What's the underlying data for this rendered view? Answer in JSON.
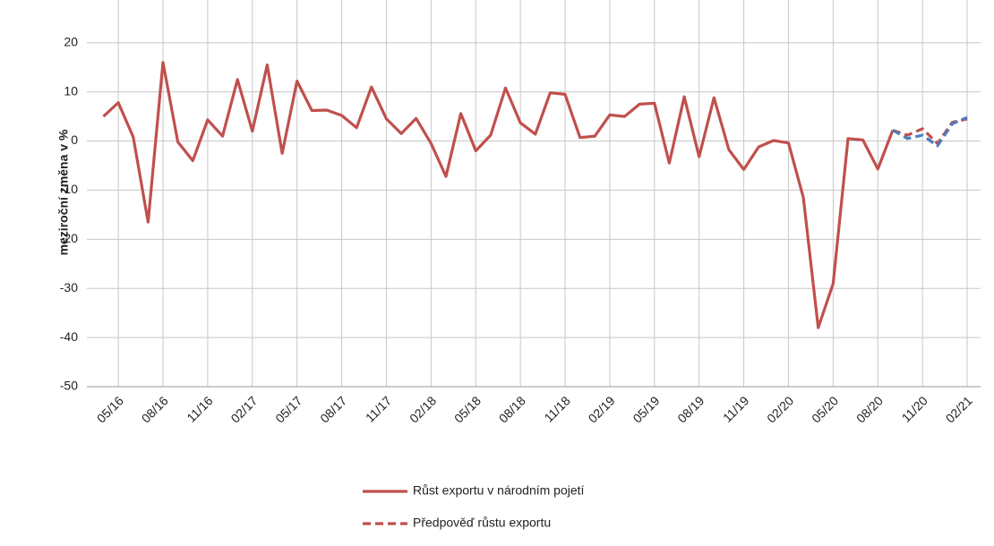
{
  "chart_data": {
    "type": "line",
    "y_label": "meziroční změna v %",
    "categories": [
      null,
      "05/16",
      null,
      null,
      "08/16",
      null,
      null,
      "11/16",
      null,
      null,
      "02/17",
      null,
      null,
      "05/17",
      null,
      null,
      "08/17",
      null,
      null,
      "11/17",
      null,
      null,
      "02/18",
      null,
      null,
      "05/18",
      null,
      null,
      "08/18",
      null,
      null,
      "11/18",
      null,
      null,
      "02/19",
      null,
      null,
      "05/19",
      null,
      null,
      "08/19",
      null,
      null,
      "11/19",
      null,
      null,
      "02/20",
      null,
      null,
      "05/20",
      null,
      null,
      "08/20",
      null,
      null,
      "11/20",
      null,
      null,
      "02/21"
    ],
    "series": [
      {
        "name": "Růst exportu v národním pojetí",
        "color": "#c0504d",
        "dashed": false,
        "values": [
          5,
          7.8,
          0.8,
          -16.5,
          16,
          -0.2,
          -4,
          4.3,
          1,
          12.5,
          2,
          15.5,
          -2.5,
          12.2,
          6.2,
          6.3,
          5.2,
          2.7,
          11,
          4.5,
          1.5,
          4.6,
          -0.5,
          -7.2,
          5.6,
          -2,
          1.2,
          10.8,
          3.7,
          1.4,
          9.8,
          9.5,
          0.7,
          1,
          5.3,
          5,
          7.5,
          7.7,
          -4.5,
          9,
          -3.2,
          8.8,
          -1.8,
          -5.8,
          -1.2,
          0.1,
          -0.4,
          -11.5,
          -38,
          -29,
          0.5,
          0.2,
          -5.7,
          2.2,
          null,
          null,
          null,
          null,
          null
        ]
      },
      {
        "name": "Předpověď růstu exportu",
        "color": "#c0504d",
        "dashed": true,
        "values": [
          null,
          null,
          null,
          null,
          null,
          null,
          null,
          null,
          null,
          null,
          null,
          null,
          null,
          null,
          null,
          null,
          null,
          null,
          null,
          null,
          null,
          null,
          null,
          null,
          null,
          null,
          null,
          null,
          null,
          null,
          null,
          null,
          null,
          null,
          null,
          null,
          null,
          null,
          null,
          null,
          null,
          null,
          null,
          null,
          null,
          null,
          null,
          null,
          null,
          null,
          null,
          null,
          null,
          2.2,
          1.2,
          2.5,
          -0.5,
          3.8,
          4.5
        ]
      },
      {
        "color": "#4a7ebb",
        "dashed": true,
        "values": [
          null,
          null,
          null,
          null,
          null,
          null,
          null,
          null,
          null,
          null,
          null,
          null,
          null,
          null,
          null,
          null,
          null,
          null,
          null,
          null,
          null,
          null,
          null,
          null,
          null,
          null,
          null,
          null,
          null,
          null,
          null,
          null,
          null,
          null,
          null,
          null,
          null,
          null,
          null,
          null,
          null,
          null,
          null,
          null,
          null,
          null,
          null,
          null,
          null,
          null,
          null,
          null,
          null,
          2.2,
          0.5,
          1.2,
          -1,
          3.5,
          4.8
        ]
      }
    ],
    "ylim": [
      -50,
      28.7
    ],
    "yticks": [
      -50,
      -40,
      -30,
      -20,
      -10,
      0,
      10,
      20
    ],
    "grid": true
  }
}
